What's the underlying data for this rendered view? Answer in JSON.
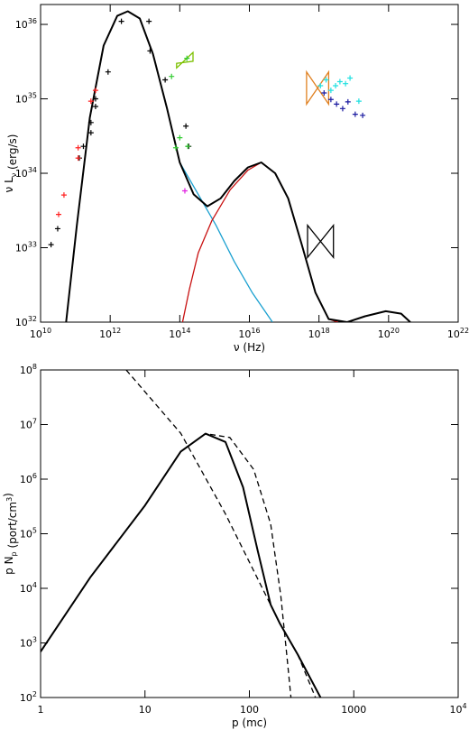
{
  "chart_data": [
    {
      "type": "line",
      "log_x": true,
      "log_y": true,
      "x_label": [
        {
          "text": "ν (Hz)"
        }
      ],
      "y_label": [
        {
          "text": "ν L"
        },
        {
          "sub": "ν"
        },
        {
          "text": " (erg/s)"
        }
      ],
      "xlim": [
        10000000000.0,
        1e+22
      ],
      "ylim": [
        1e+32,
        1.85e+36
      ],
      "xticks": [
        {
          "value": 10000000000.0,
          "label": "10",
          "exponent": "10"
        },
        {
          "value": 1000000000000.0,
          "label": "10",
          "exponent": "12"
        },
        {
          "value": 100000000000000.0,
          "label": "10",
          "exponent": "14"
        },
        {
          "value": 1e+16,
          "label": "10",
          "exponent": "16"
        },
        {
          "value": 1e+18,
          "label": "10",
          "exponent": "18"
        },
        {
          "value": 1e+20,
          "label": "10",
          "exponent": "20"
        },
        {
          "value": 1e+22,
          "label": "10",
          "exponent": "22"
        }
      ],
      "yticks": [
        {
          "value": 1e+32,
          "label": "10",
          "exponent": "32"
        },
        {
          "value": 1e+33,
          "label": "10",
          "exponent": "33"
        },
        {
          "value": 1e+34,
          "label": "10",
          "exponent": "34"
        },
        {
          "value": 1e+35,
          "label": "10",
          "exponent": "35"
        },
        {
          "value": 1e+36,
          "label": "10",
          "exponent": "36"
        }
      ],
      "series": [
        {
          "mode": "line",
          "style": "solid",
          "color": "#1aa0d0",
          "x": [
            100000000000000.0,
            340000000000000.0,
            1100000000000000.0,
            3700000000000000.0,
            1.2e+16,
            4.6e+16
          ],
          "values": [
            1.4e+34,
            5.2e+33,
            2e+33,
            6.5e+32,
            2.5e+32,
            1e+32
          ]
        },
        {
          "mode": "line",
          "style": "solid",
          "color": "#c81010",
          "x": [
            120000000000000.0,
            190000000000000.0,
            340000000000000.0,
            830000000000000.0,
            2800000000000000.0,
            9100000000000000.0,
            2.2e+16,
            5.5e+16,
            1.3e+17,
            3.2e+17,
            7.9e+17,
            1.9e+18,
            3.5e+18
          ],
          "values": [
            1e+32,
            2.8e+32,
            8.5e+32,
            2.3e+33,
            6e+33,
            1.1e+34,
            1.4e+34,
            1e+34,
            4.6e+33,
            1.1e+33,
            2.5e+32,
            1.1e+32,
            1e+32
          ]
        },
        {
          "mode": "line",
          "style": "solid",
          "color": "#000000",
          "width": 2,
          "x": [
            54000000000.0,
            110000000000.0,
            260000000000.0,
            650000000000.0,
            1600000000000.0,
            3200000000000.0,
            7100000000000.0,
            17000000000000.0,
            43000000000000.0,
            100000000000000.0,
            250000000000000.0,
            620000000000000.0,
            1500000000000000.0,
            3700000000000000.0,
            9100000000000000.0,
            2.2e+16,
            5.5e+16,
            1.3e+17,
            3.2e+17,
            7.9e+17,
            1.9e+18,
            6.5e+18,
            2.1e+19,
            8.3e+19,
            2.3e+20,
            4.2e+20
          ],
          "values": [
            1e+32,
            2e+33,
            5.6e+34,
            5.2e+35,
            1.3e+36,
            1.5e+36,
            1.2e+36,
            4e+35,
            7.4e+34,
            1.4e+34,
            5.2e+33,
            3.6e+33,
            4.6e+33,
            7.9e+33,
            1.2e+34,
            1.4e+34,
            1e+34,
            4.6e+33,
            1.1e+33,
            2.5e+32,
            1.1e+32,
            1e+32,
            1.2e+32,
            1.4e+32,
            1.3e+32,
            1e+32
          ]
        },
        {
          "mode": "polygon",
          "color": "#7cc000",
          "x": [
            81000000000000.0,
            240000000000000.0,
            240000000000000.0,
            81000000000000.0
          ],
          "values": [
            2.6e+35,
            4.2e+35,
            3.2e+35,
            3e+35
          ]
        },
        {
          "mode": "polygon",
          "color": "#e08020",
          "x": [
            4.4e+17,
            1.9e+18,
            1.9e+18,
            4.4e+17
          ],
          "values": [
            2.3e+35,
            8.5e+34,
            2.3e+35,
            8.5e+34
          ]
        },
        {
          "mode": "polygon",
          "color": "#000000",
          "x": [
            4.7e+17,
            2.6e+18,
            2.6e+18,
            4.7e+17
          ],
          "values": [
            2e+33,
            7.4e+32,
            2e+33,
            7.4e+32
          ]
        },
        {
          "mode": "plus",
          "color": "#000000",
          "x": [
            20000000000.0,
            31000000000.0,
            130000000000.0,
            170000000000.0,
            280000000000.0,
            280000000000.0,
            380000000000.0,
            380000000000.0,
            870000000000.0,
            2100000000000.0,
            13000000000000.0,
            14000000000000.0,
            38000000000000.0,
            150000000000000.0,
            180000000000000.0
          ],
          "values": [
            1.1e+33,
            1.8e+33,
            1.6e+34,
            2.3e+34,
            3.5e+34,
            4.8e+34,
            7.9e+34,
            1e+35,
            2.3e+35,
            1.1e+36,
            1.1e+36,
            4.4e+35,
            1.8e+35,
            4.3e+34,
            2.3e+34
          ]
        },
        {
          "mode": "plus",
          "color": "#ff2020",
          "x": [
            33000000000.0,
            47000000000.0,
            120000000000.0,
            120000000000.0,
            280000000000.0,
            380000000000.0
          ],
          "values": [
            2.8e+33,
            5.1e+33,
            1.6e+34,
            2.2e+34,
            9.3e+34,
            1.3e+35
          ]
        },
        {
          "mode": "plus",
          "color": "#33cc33",
          "x": [
            58000000000000.0,
            100000000000000.0,
            77000000000000.0,
            170000000000000.0,
            160000000000000.0
          ],
          "values": [
            2e+35,
            3e+34,
            2.2e+34,
            2.3e+34,
            3.5e+35
          ]
        },
        {
          "mode": "plus",
          "color": "#e020e0",
          "x": [
            140000000000000.0
          ],
          "values": [
            5.8e+33
          ]
        },
        {
          "mode": "plus",
          "color": "#20e0e0",
          "x": [
            1.1e+18,
            1.6e+18,
            2.2e+18,
            3e+18,
            4e+18,
            5.8e+18,
            7.8e+18,
            1.4e+19
          ],
          "values": [
            1.5e+35,
            1.8e+35,
            1.3e+35,
            1.5e+35,
            1.7e+35,
            1.6e+35,
            1.9e+35,
            9.3e+34
          ]
        },
        {
          "mode": "plus",
          "color": "#1a1aa0",
          "x": [
            1.4e+18,
            2.2e+18,
            3.2e+18,
            4.8e+18,
            6.8e+18,
            1.1e+19,
            1.8e+19
          ],
          "values": [
            1.2e+35,
            9.8e+34,
            8.5e+34,
            7.4e+34,
            9.1e+34,
            6.2e+34,
            6e+34
          ]
        }
      ]
    },
    {
      "type": "line",
      "log_x": true,
      "log_y": true,
      "x_label": [
        {
          "text": "p  (mc)"
        }
      ],
      "y_label": [
        {
          "text": "p N"
        },
        {
          "sub": "p"
        },
        {
          "text": "  (port/cm"
        },
        {
          "sup": "3"
        },
        {
          "text": ")"
        }
      ],
      "xlim": [
        1,
        10000
      ],
      "ylim": [
        100,
        100000000.0
      ],
      "xticks": [
        1,
        10,
        100,
        1000,
        {
          "value": 10000,
          "label": "10",
          "exponent": "4"
        }
      ],
      "yticks": [
        {
          "value": 100,
          "label": "10",
          "exponent": "2"
        },
        {
          "value": 1000,
          "label": "10",
          "exponent": "3"
        },
        {
          "value": 10000,
          "label": "10",
          "exponent": "4"
        },
        {
          "value": 100000,
          "label": "10",
          "exponent": "5"
        },
        {
          "value": 1000000,
          "label": "10",
          "exponent": "6"
        },
        {
          "value": 10000000,
          "label": "10",
          "exponent": "7"
        },
        {
          "value": 100000000,
          "label": "10",
          "exponent": "8"
        }
      ],
      "series": [
        {
          "mode": "line",
          "style": "dashed",
          "color": "#000000",
          "x": [
            1,
            3.0,
            10,
            22,
            38,
            65,
            110,
            160,
            200,
            230,
            250
          ],
          "values": [
            690,
            16000,
            330000,
            3200000,
            6800000,
            5800000,
            1500000,
            150000,
            7400,
            510,
            100
          ]
        },
        {
          "mode": "line",
          "style": "dashed",
          "color": "#000000",
          "x": [
            6.6,
            22,
            59,
            130,
            195,
            290,
            430
          ],
          "values": [
            100000000,
            6900000,
            230000,
            11000,
            2300,
            620,
            100
          ]
        },
        {
          "mode": "line",
          "style": "solid",
          "color": "#000000",
          "width": 2,
          "x": [
            1,
            3.0,
            10,
            22,
            38,
            59,
            87,
            120,
            160,
            195,
            290,
            480
          ],
          "values": [
            690,
            16000,
            330000,
            3200000,
            6800000,
            4800000,
            710000,
            49000,
            5000,
            2300,
            620,
            100
          ]
        }
      ]
    }
  ]
}
